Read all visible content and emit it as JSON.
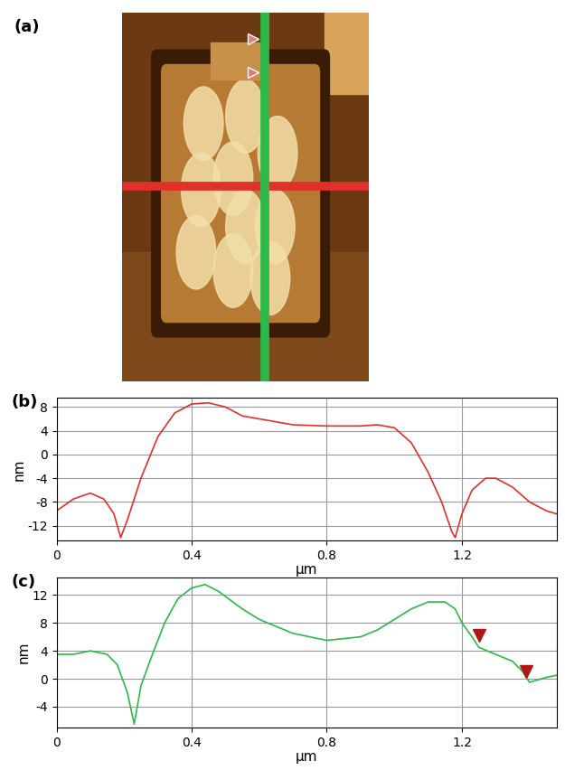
{
  "image": {
    "title": "(a)"
  },
  "chart_data": [
    {
      "type": "line",
      "title": "(b)",
      "x_label": "µm",
      "y_label": "nm",
      "xlim": [
        0,
        1.48
      ],
      "ylim": [
        -14.5,
        9.5
      ],
      "xticks": [
        0,
        0.4,
        0.8,
        1.2
      ],
      "yticks": [
        -12,
        -8,
        -4,
        0,
        4,
        8
      ],
      "grid": true,
      "series": [
        {
          "color": "#e0302a",
          "x": [
            0,
            0.05,
            0.1,
            0.14,
            0.17,
            0.19,
            0.21,
            0.25,
            0.3,
            0.35,
            0.4,
            0.45,
            0.5,
            0.55,
            0.6,
            0.7,
            0.8,
            0.9,
            0.95,
            1.0,
            1.05,
            1.1,
            1.14,
            1.17,
            1.18,
            1.2,
            1.23,
            1.27,
            1.3,
            1.35,
            1.4,
            1.45,
            1.48
          ],
          "values": [
            -9.5,
            -7.5,
            -6.5,
            -7.5,
            -10,
            -14,
            -11,
            -4,
            3,
            7,
            8.5,
            8.7,
            8,
            6.5,
            6,
            5,
            4.8,
            4.8,
            5,
            4.5,
            2,
            -3,
            -8,
            -13,
            -14,
            -10,
            -6,
            -4,
            -4,
            -5.5,
            -8,
            -9.5,
            -10
          ]
        }
      ]
    },
    {
      "type": "line",
      "title": "(c)",
      "x_label": "µm",
      "y_label": "nm",
      "xlim": [
        0,
        1.48
      ],
      "ylim": [
        -7,
        14.5
      ],
      "xticks": [
        0,
        0.4,
        0.8,
        1.2
      ],
      "yticks": [
        -4,
        0,
        4,
        8,
        12
      ],
      "grid": true,
      "series": [
        {
          "color": "#2db84a",
          "x": [
            0,
            0.05,
            0.1,
            0.15,
            0.18,
            0.21,
            0.23,
            0.25,
            0.28,
            0.32,
            0.36,
            0.4,
            0.44,
            0.48,
            0.55,
            0.6,
            0.7,
            0.8,
            0.9,
            0.95,
            1.0,
            1.05,
            1.1,
            1.15,
            1.18,
            1.2,
            1.23,
            1.25,
            1.3,
            1.35,
            1.38,
            1.4,
            1.45,
            1.48
          ],
          "values": [
            3.5,
            3.5,
            4,
            3.5,
            2,
            -2,
            -6.5,
            -1,
            3,
            8,
            11.5,
            13,
            13.5,
            12.5,
            10,
            8.5,
            6.5,
            5.5,
            6,
            7,
            8.5,
            10,
            11,
            11,
            10,
            8,
            6,
            4.5,
            3.5,
            2.5,
            1,
            -0.5,
            0.2,
            0.5
          ]
        }
      ],
      "cursor_points": {
        "x": [
          1.25,
          1.39
        ],
        "y": [
          6.2,
          1.0
        ]
      }
    }
  ]
}
